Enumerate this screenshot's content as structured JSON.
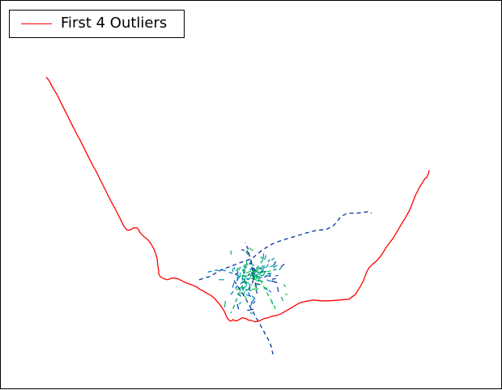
{
  "chart_data": {
    "type": "line",
    "axes_visible": false,
    "legend": {
      "placement": "upper-left",
      "entries": [
        "First 4 Outliers"
      ]
    },
    "outlier_color": "#ff0000",
    "background_palette": [
      "#003399",
      "#0077cc",
      "#00aa66",
      "#00cc33",
      "#0099aa"
    ],
    "series": [
      {
        "name": "First 4 Outliers",
        "color": "#ff0000",
        "style": "solid",
        "x": [
          -254,
          -250,
          -246,
          -241,
          -237,
          -233,
          -229,
          -225,
          -221,
          -217,
          -213,
          -209,
          -205,
          -201,
          -197,
          -193,
          -189,
          -185,
          -181,
          -177,
          -173,
          -169,
          -165,
          -161,
          -158,
          -155,
          -152,
          -149,
          -146,
          -142,
          -140,
          -138,
          -133,
          -129,
          -125,
          -121,
          -119,
          -117,
          -116,
          -115,
          -115,
          -114,
          -112,
          -108,
          -104,
          -99,
          -95,
          -91,
          -87,
          -81,
          -75,
          -68,
          -64,
          -60,
          -55,
          -51,
          -46,
          -40,
          -37,
          -34,
          -31,
          -28,
          -26,
          -24,
          -23,
          -22,
          -20,
          -17,
          -12,
          -7,
          -4,
          -1,
          4,
          9,
          15,
          20,
          25,
          31,
          36,
          43,
          50,
          58,
          65,
          76,
          86,
          96,
          108,
          120,
          128,
          133,
          138,
          142,
          145,
          148,
          150,
          154,
          159,
          163,
          166,
          169,
          172,
          175,
          178,
          181,
          185,
          190,
          195,
          199,
          202,
          205,
          207,
          209,
          211,
          212,
          214,
          216,
          217,
          218,
          219
        ],
        "y": [
          246,
          241,
          233,
          225,
          217,
          209,
          201,
          193,
          185,
          177,
          170,
          162,
          154,
          146,
          138,
          131,
          123,
          115,
          107,
          99,
          91,
          84,
          76,
          68,
          62,
          58,
          57,
          58,
          60,
          60,
          58,
          54,
          49,
          46,
          41,
          34,
          29,
          22,
          13,
          7,
          4,
          1,
          -1,
          -3,
          -4,
          -2,
          -2,
          -3,
          -5,
          -8,
          -10,
          -13,
          -16,
          -18,
          -21,
          -23,
          -27,
          -34,
          -38,
          -43,
          -50,
          -54,
          -55,
          -54,
          -53,
          -54,
          -55,
          -54,
          -51,
          -52,
          -54,
          -54,
          -56,
          -55,
          -52,
          -51,
          -49,
          -48,
          -46,
          -42,
          -38,
          -33,
          -31,
          -29,
          -30,
          -30,
          -29,
          -28,
          -22,
          -14,
          -5,
          6,
          11,
          14,
          16,
          19,
          25,
          31,
          36,
          40,
          44,
          48,
          53,
          58,
          65,
          73,
          82,
          92,
          100,
          106,
          110,
          113,
          116,
          118,
          121,
          122,
          125,
          126,
          131
        ]
      },
      {
        "name": "",
        "color": "#003399",
        "style": "dashed",
        "x": [
          -65,
          -52,
          -38,
          -25,
          -12,
          0,
          12,
          25,
          38,
          52,
          65,
          80,
          92,
          100,
          104,
          110,
          118,
          128,
          138,
          144,
          148
        ],
        "y": [
          -4,
          0,
          8,
          13,
          18,
          22,
          32,
          40,
          45,
          49,
          53,
          57,
          58,
          62,
          66,
          74,
          78,
          78,
          79,
          80,
          78
        ]
      },
      {
        "name": "",
        "color": "#003399",
        "style": "dashed",
        "x": [
          -22,
          -16,
          -10,
          -5,
          0,
          5,
          10,
          15,
          20,
          24,
          26
        ],
        "y": [
          -5,
          -14,
          -23,
          -32,
          -41,
          -50,
          -59,
          -68,
          -77,
          -86,
          -96
        ]
      },
      {
        "name": "",
        "color": "#0077cc",
        "style": "dashed",
        "x": [
          -8,
          -12,
          -17,
          -22,
          -27,
          -32,
          -36,
          -40,
          -44,
          -48,
          -52,
          -56
        ],
        "y": [
          -5,
          -2,
          1,
          3,
          5,
          7,
          8,
          7,
          8,
          7,
          6,
          5
        ]
      },
      {
        "name": "",
        "color": "#003399",
        "style": "dashed",
        "x": [
          2,
          1,
          0,
          -1,
          -3,
          -4,
          -5,
          -7,
          -8
        ],
        "y": [
          -2,
          6,
          14,
          20,
          26,
          31,
          35,
          38,
          42
        ]
      },
      {
        "name": "",
        "color": "#00aa66",
        "style": "dashed",
        "x": [
          -8,
          -12,
          -14,
          -17,
          -19,
          -21,
          -22,
          -24,
          -26
        ],
        "y": [
          -2,
          -12,
          -18,
          -23,
          -29,
          -33,
          -37,
          -41,
          -45
        ]
      },
      {
        "name": "",
        "color": "#00cc33",
        "style": "dashed",
        "x": [
          10,
          14,
          18,
          21,
          25,
          28,
          30
        ],
        "y": [
          -4,
          -11,
          -18,
          -25,
          -31,
          -37,
          -43
        ]
      },
      {
        "name": "",
        "color": "#0099aa",
        "style": "dashed",
        "x": [
          -6,
          0,
          6,
          12,
          18,
          24,
          28,
          33,
          37
        ],
        "y": [
          -4,
          -1,
          2,
          1,
          3,
          4,
          9,
          7,
          12
        ]
      },
      {
        "name": "",
        "color": "#00aa66",
        "style": "dashed",
        "x": [
          0,
          3,
          6,
          9,
          11,
          13,
          14
        ],
        "y": [
          2,
          6,
          10,
          14,
          17,
          19,
          22
        ]
      },
      {
        "name": "",
        "color": "#0077cc",
        "style": "dashed",
        "x": [
          -10,
          -14,
          -18,
          -21,
          -24,
          -27
        ],
        "y": [
          -6,
          -9,
          -12,
          -16,
          -20,
          -23
        ]
      }
    ],
    "cluster": {
      "center": [
        0,
        0
      ],
      "n_segments": 130,
      "spread_x": 20,
      "spread_y": 22,
      "colors": [
        "#003399",
        "#0077cc",
        "#00aa66",
        "#00cc33",
        "#0099aa"
      ]
    },
    "xlim": [
      -310,
      310
    ],
    "ylim": [
      -140,
      340
    ]
  }
}
